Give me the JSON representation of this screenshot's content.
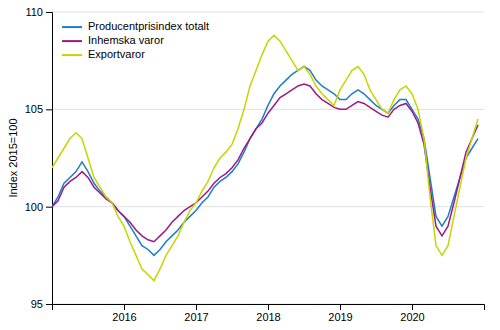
{
  "chart_data": {
    "type": "line",
    "y_label": "Index 2015=100",
    "x": [
      2015.0,
      2015.0833333333333,
      2015.1666666666667,
      2015.25,
      2015.3333333333333,
      2015.4166666666667,
      2015.5,
      2015.5833333333333,
      2015.6666666666667,
      2015.75,
      2015.8333333333333,
      2015.9166666666667,
      2016.0,
      2016.0833333333333,
      2016.1666666666667,
      2016.25,
      2016.3333333333333,
      2016.4166666666667,
      2016.5,
      2016.5833333333333,
      2016.6666666666667,
      2016.75,
      2016.8333333333333,
      2016.9166666666667,
      2017.0,
      2017.0833333333333,
      2017.1666666666667,
      2017.25,
      2017.3333333333333,
      2017.4166666666667,
      2017.5,
      2017.5833333333333,
      2017.6666666666667,
      2017.75,
      2017.8333333333333,
      2017.9166666666667,
      2018.0,
      2018.0833333333333,
      2018.1666666666667,
      2018.25,
      2018.3333333333333,
      2018.4166666666667,
      2018.5,
      2018.5833333333333,
      2018.6666666666667,
      2018.75,
      2018.8333333333333,
      2018.9166666666667,
      2019.0,
      2019.0833333333333,
      2019.1666666666667,
      2019.25,
      2019.3333333333333,
      2019.4166666666667,
      2019.5,
      2019.5833333333333,
      2019.6666666666667,
      2019.75,
      2019.8333333333333,
      2019.9166666666667,
      2020.0,
      2020.0833333333333,
      2020.1666666666667,
      2020.25,
      2020.3333333333333,
      2020.4166666666667,
      2020.5,
      2020.5833333333333,
      2020.6666666666667,
      2020.75,
      2020.8333333333333,
      2020.9166666666667
    ],
    "series": [
      {
        "name": "Producentprisindex totalt",
        "color": "#1f7dc4",
        "values": [
          100.0,
          100.5,
          101.2,
          101.5,
          101.8,
          102.3,
          101.8,
          101.2,
          100.8,
          100.5,
          100.2,
          99.8,
          99.5,
          99.0,
          98.5,
          98.0,
          97.8,
          97.5,
          97.8,
          98.2,
          98.5,
          98.8,
          99.2,
          99.5,
          99.8,
          100.2,
          100.5,
          101.0,
          101.3,
          101.5,
          101.8,
          102.2,
          102.8,
          103.5,
          104.0,
          104.5,
          105.2,
          105.8,
          106.2,
          106.5,
          106.8,
          107.0,
          107.2,
          107.0,
          106.5,
          106.2,
          106.0,
          105.8,
          105.5,
          105.5,
          105.8,
          106.0,
          105.8,
          105.5,
          105.2,
          105.0,
          104.8,
          105.2,
          105.5,
          105.5,
          105.0,
          104.5,
          103.5,
          101.5,
          99.5,
          99.0,
          99.5,
          100.5,
          101.5,
          102.5,
          103.0,
          103.5
        ]
      },
      {
        "name": "Inhemska varor",
        "color": "#9b1a8a",
        "values": [
          100.0,
          100.3,
          101.0,
          101.3,
          101.5,
          101.8,
          101.5,
          101.0,
          100.7,
          100.4,
          100.2,
          99.8,
          99.5,
          99.2,
          98.8,
          98.5,
          98.3,
          98.2,
          98.5,
          98.8,
          99.2,
          99.5,
          99.8,
          100.0,
          100.2,
          100.5,
          100.8,
          101.2,
          101.5,
          101.7,
          102.0,
          102.4,
          103.0,
          103.5,
          104.0,
          104.3,
          104.8,
          105.2,
          105.6,
          105.8,
          106.0,
          106.2,
          106.3,
          106.2,
          105.8,
          105.5,
          105.3,
          105.1,
          105.0,
          105.0,
          105.2,
          105.4,
          105.3,
          105.1,
          104.9,
          104.7,
          104.6,
          105.0,
          105.2,
          105.3,
          104.9,
          104.3,
          103.2,
          101.0,
          99.0,
          98.5,
          99.0,
          100.2,
          101.5,
          102.8,
          103.5,
          104.2
        ]
      },
      {
        "name": "Exportvaror",
        "color": "#c8d400",
        "values": [
          102.0,
          102.5,
          103.0,
          103.5,
          103.8,
          103.5,
          102.5,
          101.5,
          101.0,
          100.5,
          100.2,
          99.5,
          99.0,
          98.2,
          97.5,
          96.8,
          96.5,
          96.2,
          96.8,
          97.5,
          98.0,
          98.5,
          99.2,
          99.8,
          100.2,
          100.8,
          101.3,
          102.0,
          102.5,
          102.8,
          103.2,
          104.0,
          105.0,
          106.2,
          107.0,
          107.8,
          108.5,
          108.8,
          108.5,
          108.0,
          107.5,
          107.0,
          107.2,
          106.8,
          106.2,
          105.8,
          105.5,
          105.2,
          106.0,
          106.5,
          107.0,
          107.2,
          106.8,
          106.0,
          105.5,
          105.0,
          104.8,
          105.5,
          106.0,
          106.2,
          105.8,
          105.0,
          103.5,
          100.5,
          98.0,
          97.5,
          98.0,
          99.5,
          101.0,
          102.5,
          103.5,
          104.5
        ]
      }
    ],
    "xlim": [
      2015.0,
      2021.0
    ],
    "xticks": [
      2016,
      2017,
      2018,
      2019,
      2020
    ],
    "ylim": [
      95,
      110
    ],
    "yticks": [
      95,
      100,
      105,
      110
    ],
    "grid": true,
    "legend": "top-left"
  }
}
